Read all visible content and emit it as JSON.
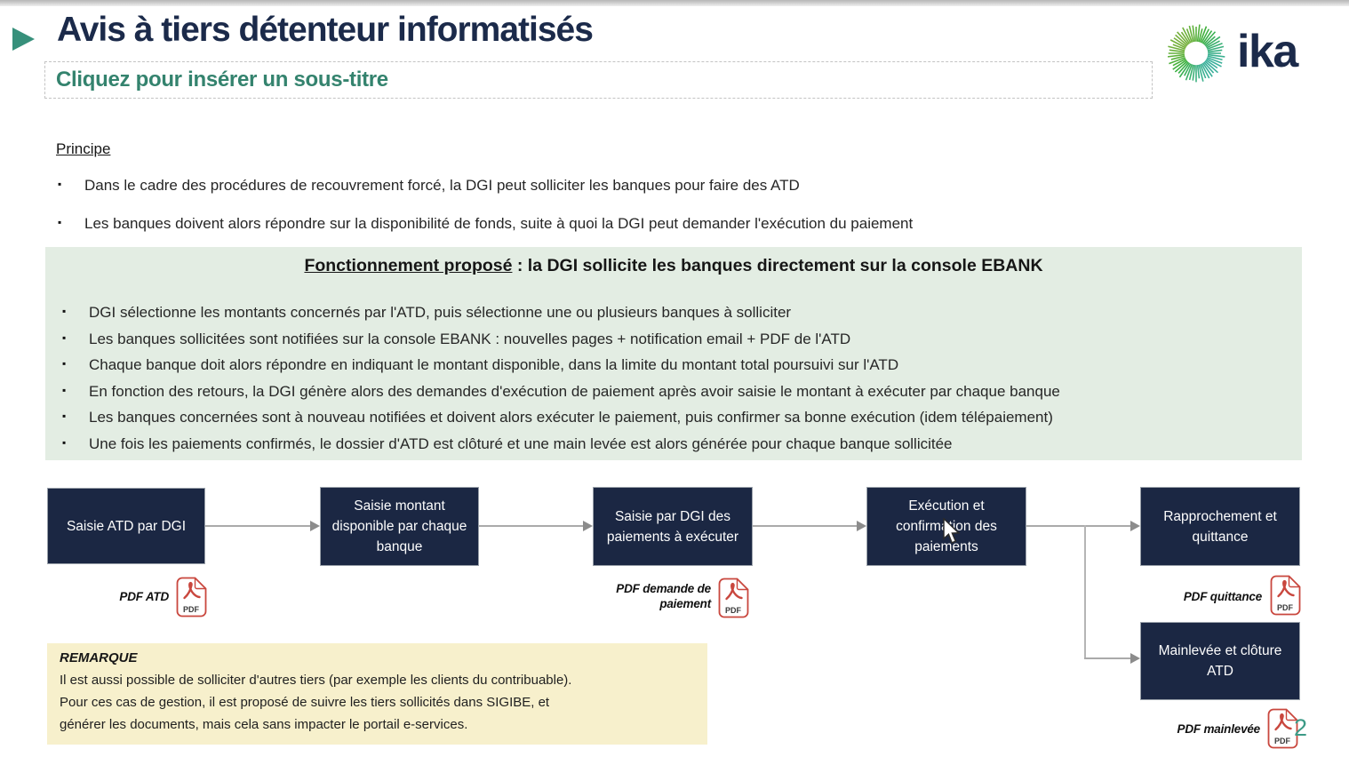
{
  "slide": {
    "title": "Avis à tiers détenteur informatisés",
    "subtitle_placeholder": "Cliquez pour insérer un sous-titre",
    "page_number": "2"
  },
  "logo": {
    "text": "ika"
  },
  "principe": {
    "heading": "Principe",
    "bullets": [
      "Dans le cadre des procédures de recouvrement forcé, la DGI peut solliciter les banques pour faire des ATD",
      "Les banques doivent alors répondre sur la disponibilité de fonds, suite à quoi la DGI peut demander l'exécution du paiement"
    ]
  },
  "proposal": {
    "heading_underlined": "Fonctionnement proposé",
    "heading_rest": " : la DGI sollicite les banques directement sur la console EBANK",
    "bullets": [
      "DGI sélectionne les montants concernés par l'ATD, puis sélectionne une ou plusieurs banques à solliciter",
      "Les banques sollicitées sont notifiées sur la console EBANK : nouvelles pages + notification email + PDF de l'ATD",
      "Chaque banque doit alors répondre en indiquant le montant disponible, dans la limite du montant total poursuivi sur l'ATD",
      "En fonction des retours, la DGI génère alors des demandes d'exécution de paiement après avoir saisie le montant à exécuter par chaque banque",
      "Les banques concernées sont à nouveau notifiées et doivent alors exécuter le paiement, puis confirmer sa bonne exécution (idem télépaiement)",
      "Une fois les paiements confirmés, le dossier d'ATD est clôturé et une main levée est alors générée pour chaque banque sollicitée"
    ]
  },
  "flow": {
    "steps": [
      "Saisie ATD par DGI",
      "Saisie montant disponible par chaque banque",
      "Saisie par DGI des paiements à exécuter",
      "Exécution et confirmation des paiements",
      "Rapprochement et quittance",
      "Mainlevée et clôture ATD"
    ],
    "pdf_labels": {
      "atd": "PDF ATD",
      "demande": "PDF demande de paiement",
      "quittance": "PDF quittance",
      "mainlevee": "PDF mainlevée"
    },
    "pdf_icon_text": "PDF"
  },
  "remark": {
    "heading": "REMARQUE",
    "lines": [
      "Il est aussi possible de solliciter d'autres tiers (par exemple les clients du contribuable).",
      "Pour ces cas de gestion, il est proposé de suivre les tiers sollicités dans SIGIBE, et",
      "générer les documents, mais cela sans impacter le portail e-services."
    ]
  },
  "colors": {
    "accent_teal": "#37907b",
    "title_navy": "#1b2a4a",
    "box_navy": "#1b2743",
    "green_bg": "#e3ede3",
    "yellow_bg": "#f7f0cc",
    "pdf_red": "#c9473e",
    "arrow_gray": "#aaaaaa"
  }
}
